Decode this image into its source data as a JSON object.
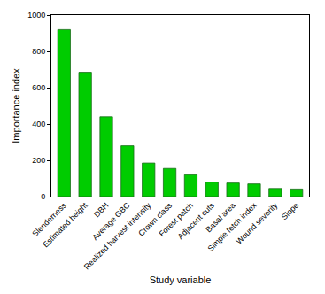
{
  "chart_data": {
    "type": "bar",
    "x_label": "Study variable",
    "y_label": "Importance index",
    "categories": [
      "Slenderness",
      "Estimated height",
      "DBH",
      "Average GBC",
      "Realized harvest intensity",
      "Crown class",
      "Forest patch",
      "Adjacent cuts",
      "Basal area",
      "Simple fetch index",
      "Wound severity",
      "Slope"
    ],
    "values": [
      920,
      685,
      440,
      280,
      185,
      155,
      120,
      80,
      75,
      70,
      45,
      42
    ],
    "color": "#00cc00",
    "ylim": [
      0,
      1000
    ],
    "yticks": [
      0,
      200,
      400,
      600,
      800,
      1000
    ],
    "grid": false
  }
}
